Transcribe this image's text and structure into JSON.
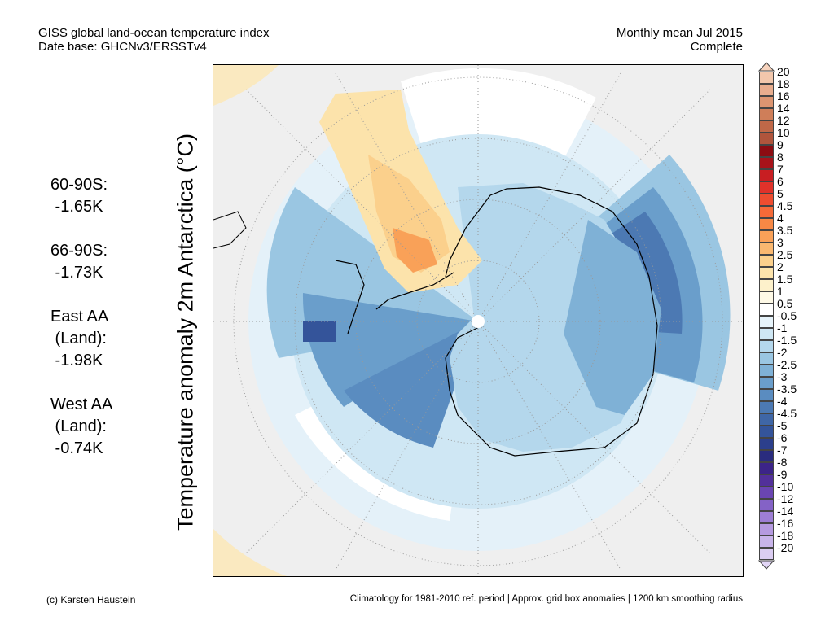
{
  "header": {
    "title_line1": "GISS global land-ocean temperature index",
    "title_line2": "Date base: GHCNv3/ERSSTv4",
    "period_line1": "Monthly mean Jul 2015",
    "period_line2": "Complete"
  },
  "stats": [
    {
      "lines": [
        "60-90S:",
        " -1.65K"
      ]
    },
    {
      "lines": [
        "66-90S:",
        " -1.73K"
      ]
    },
    {
      "lines": [
        "East AA",
        " (Land):",
        " -1.98K"
      ]
    },
    {
      "lines": [
        "West AA",
        " (Land):",
        " -0.74K"
      ]
    }
  ],
  "ylabel": "Temperature anomaly 2m Antarctica (°C)",
  "colorbar": {
    "labels": [
      "20",
      "18",
      "16",
      "14",
      "12",
      "10",
      "9",
      "8",
      "7",
      "6",
      "5",
      "4.5",
      "4",
      "3.5",
      "3",
      "2.5",
      "2",
      "1.5",
      "1",
      "0.5",
      "-0.5",
      "-1",
      "-1.5",
      "-2",
      "-2.5",
      "-3",
      "-3.5",
      "-4",
      "-4.5",
      "-5",
      "-6",
      "-7",
      "-8",
      "-9",
      "-10",
      "-12",
      "-14",
      "-16",
      "-18",
      "-20"
    ],
    "colors": [
      "#f2c7ac",
      "#e8ad8e",
      "#dc9571",
      "#cf7e59",
      "#c06848",
      "#b0553c",
      "#8c0c12",
      "#a8121a",
      "#c81e22",
      "#e0322a",
      "#ee4d30",
      "#f56a38",
      "#f78845",
      "#f9a158",
      "#fab870",
      "#fbd08c",
      "#fce3ab",
      "#fdf1cb",
      "#fef9e6",
      "#ffffff",
      "#e6f3fa",
      "#cfe7f4",
      "#b4d7ec",
      "#9ac6e2",
      "#7fb1d6",
      "#6a9ecb",
      "#5a8cc0",
      "#4c79b3",
      "#3f66a6",
      "#34549a",
      "#2c3f8c",
      "#2a2c7e",
      "#3c2488",
      "#52309a",
      "#6a45b2",
      "#8462c6",
      "#9d7ed4",
      "#b59ae0",
      "#c8b4ea",
      "#dbcdf2"
    ],
    "arrow_top_color": "#f7d3bd",
    "arrow_bottom_color": "#e2d6f6"
  },
  "footer": {
    "left": "(c) Karsten Haustein",
    "right": "Climatology for 1981-2010 ref. period | Approx. grid box anomalies | 1200 km smoothing radius"
  }
}
